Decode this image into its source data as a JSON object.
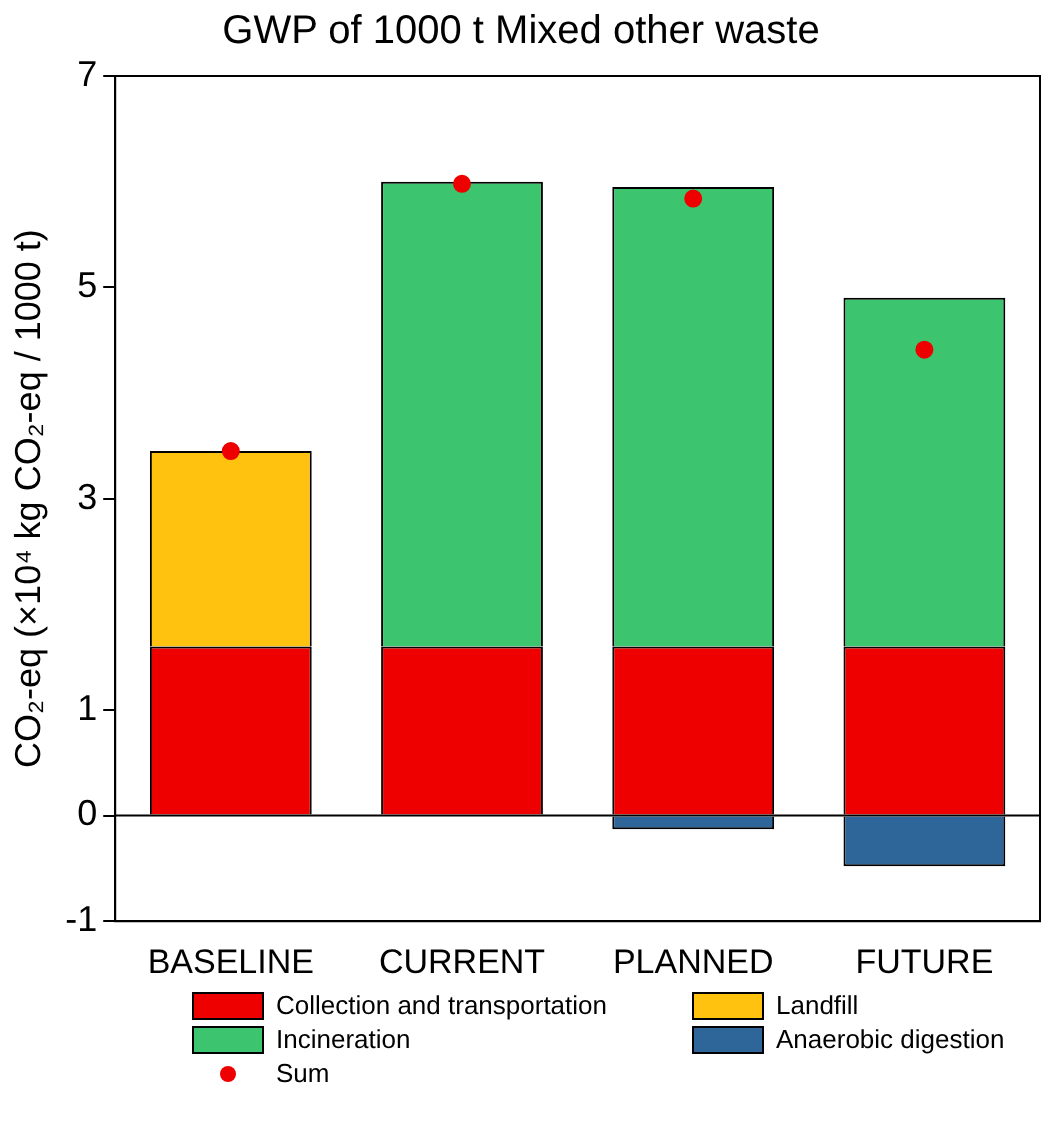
{
  "chart_data": {
    "type": "bar",
    "title": "GWP of 1000 t Mixed other waste",
    "ylabel": "CO₂-eq (×10⁴ kg CO₂-eq / 1000 t)",
    "categories": [
      "BASELINE",
      "CURRENT",
      "PLANNED",
      "FUTURE"
    ],
    "stacked": true,
    "series": [
      {
        "name": "Collection and transportation",
        "color": "#ee0000",
        "values": [
          1.6,
          1.6,
          1.6,
          1.6
        ]
      },
      {
        "name": "Landfill",
        "color": "#ffc20e",
        "values": [
          1.85,
          null,
          null,
          null
        ]
      },
      {
        "name": "Incineration",
        "color": "#3cc46e",
        "values": [
          null,
          4.4,
          4.35,
          3.3
        ]
      },
      {
        "name": "Anaerobic digestion",
        "color": "#2e6699",
        "values": [
          null,
          null,
          -0.13,
          -0.48
        ]
      },
      {
        "name": "Sum",
        "type": "scatter",
        "color": "#ee0000",
        "marker": "circle",
        "x": [
          "BASELINE",
          "CURRENT",
          "PLANNED",
          "FUTURE"
        ],
        "values": [
          3.45,
          5.98,
          5.84,
          4.41
        ]
      }
    ],
    "ylim": [
      -1,
      7
    ],
    "yticks": [
      -1,
      0,
      1,
      3,
      5,
      7
    ],
    "ref_lines": [
      {
        "axis": "y",
        "value": 0,
        "color": "#000000"
      }
    ],
    "grid": false,
    "legend": "bottom"
  }
}
